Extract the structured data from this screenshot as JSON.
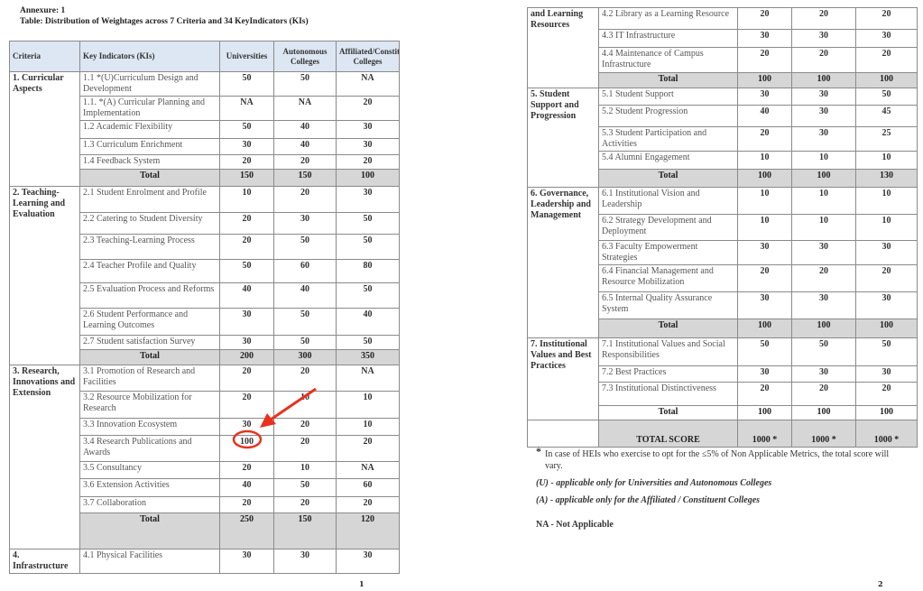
{
  "page1": {
    "annexure": "Annexure: 1",
    "title": "Table: Distribution of Weightages across 7 Criteria and 34 KeyIndicators (KIs)",
    "page_number": "1",
    "headers": [
      "Criteria",
      "Key Indicators (KIs)",
      "Universities",
      "Autonomous Colleges",
      "Affiliated/Constituent Colleges"
    ],
    "groups": [
      {
        "criteria": "1. Curricular Aspects",
        "rows": [
          {
            "ki": "1.1 *(U)Curriculum Design and Development",
            "u": "50",
            "a": "50",
            "c": "NA"
          },
          {
            "ki": "1.1. *(A) Curricular Planning and Implementation",
            "u": "NA",
            "a": "NA",
            "c": "20"
          },
          {
            "ki": "1.2 Academic Flexibility",
            "u": "50",
            "a": "40",
            "c": "30"
          },
          {
            "ki": "1.3 Curriculum Enrichment",
            "u": "30",
            "a": "40",
            "c": "30"
          },
          {
            "ki": "1.4 Feedback System",
            "u": "20",
            "a": "20",
            "c": "20"
          }
        ],
        "total": {
          "label": "Total",
          "u": "150",
          "a": "150",
          "c": "100"
        }
      },
      {
        "criteria": "2. Teaching-Learning and Evaluation",
        "rows": [
          {
            "ki": "2.1 Student Enrolment and Profile",
            "u": "10",
            "a": "20",
            "c": "30"
          },
          {
            "ki": "2.2 Catering to Student Diversity",
            "u": "20",
            "a": "30",
            "c": "50"
          },
          {
            "ki": "2.3 Teaching-Learning Process",
            "u": "20",
            "a": "50",
            "c": "50"
          },
          {
            "ki": "2.4 Teacher Profile and Quality",
            "u": "50",
            "a": "60",
            "c": "80"
          },
          {
            "ki": "2.5 Evaluation Process and Reforms",
            "u": "40",
            "a": "40",
            "c": "50"
          },
          {
            "ki": "2.6 Student Performance and Learning Outcomes",
            "u": "30",
            "a": "50",
            "c": "40"
          },
          {
            "ki": "2.7 Student satisfaction Survey",
            "u": "30",
            "a": "50",
            "c": "50"
          }
        ],
        "total": {
          "label": "Total",
          "u": "200",
          "a": "300",
          "c": "350"
        }
      },
      {
        "criteria": "3. Research, Innovations and Extension",
        "rows": [
          {
            "ki": "3.1 Promotion of Research and Facilities",
            "u": "20",
            "a": "20",
            "c": "NA"
          },
          {
            "ki": "3.2 Resource Mobilization for Research",
            "u": "20",
            "a": "10",
            "c": "10"
          },
          {
            "ki": "3.3 Innovation Ecosystem",
            "u": "30",
            "a": "20",
            "c": "10"
          },
          {
            "ki": "3.4 Research Publications and Awards",
            "u": "100",
            "a": "20",
            "c": "20"
          },
          {
            "ki": "3.5 Consultancy",
            "u": "20",
            "a": "10",
            "c": "NA"
          },
          {
            "ki": "3.6 Extension Activities",
            "u": "40",
            "a": "50",
            "c": "60"
          },
          {
            "ki": "3.7 Collaboration",
            "u": "20",
            "a": "20",
            "c": "20"
          }
        ],
        "total": {
          "label": "Total",
          "u": "250",
          "a": "150",
          "c": "120"
        }
      },
      {
        "criteria": "4. Infrastructure",
        "rows": [
          {
            "ki": "4.1 Physical Facilities",
            "u": "30",
            "a": "30",
            "c": "30"
          }
        ]
      }
    ]
  },
  "page2": {
    "page_number": "2",
    "groups": [
      {
        "criteria": "and Learning Resources",
        "rows": [
          {
            "ki": "4.2 Library as a Learning Resource",
            "u": "20",
            "a": "20",
            "c": "20"
          },
          {
            "ki": "4.3 IT Infrastructure",
            "u": "30",
            "a": "30",
            "c": "30"
          },
          {
            "ki": "4.4 Maintenance of Campus Infrastructure",
            "u": "20",
            "a": "20",
            "c": "20"
          }
        ],
        "total": {
          "label": "Total",
          "u": "100",
          "a": "100",
          "c": "100"
        }
      },
      {
        "criteria": "5. Student Support and Progression",
        "rows": [
          {
            "ki": "5.1 Student Support",
            "u": "30",
            "a": "30",
            "c": "50"
          },
          {
            "ki": "5.2 Student Progression",
            "u": "40",
            "a": "30",
            "c": "45"
          },
          {
            "ki": "5.3 Student Participation and Activities",
            "u": "20",
            "a": "30",
            "c": "25"
          },
          {
            "ki": "5.4 Alumni Engagement",
            "u": "10",
            "a": "10",
            "c": "10"
          }
        ],
        "total": {
          "label": "Total",
          "u": "100",
          "a": "100",
          "c": "130"
        }
      },
      {
        "criteria": "6. Governance, Leadership and Management",
        "rows": [
          {
            "ki": "6.1 Institutional Vision and Leadership",
            "u": "10",
            "a": "10",
            "c": "10"
          },
          {
            "ki": "6.2 Strategy Development and Deployment",
            "u": "10",
            "a": "10",
            "c": "10"
          },
          {
            "ki": "6.3 Faculty Empowerment Strategies",
            "u": "30",
            "a": "30",
            "c": "30"
          },
          {
            "ki": "6.4 Financial Management and Resource Mobilization",
            "u": "20",
            "a": "20",
            "c": "20"
          },
          {
            "ki": "6.5 Internal Quality Assurance System",
            "u": "30",
            "a": "30",
            "c": "30"
          }
        ],
        "total": {
          "label": "Total",
          "u": "100",
          "a": "100",
          "c": "100"
        }
      },
      {
        "criteria": "7. Institutional Values and Best Practices",
        "rows": [
          {
            "ki": "7.1 Institutional Values and Social Responsibilities",
            "u": "50",
            "a": "50",
            "c": "50"
          },
          {
            "ki": "7.2 Best Practices",
            "u": "30",
            "a": "30",
            "c": "30"
          },
          {
            "ki": "7.3 Institutional Distinctiveness",
            "u": "20",
            "a": "20",
            "c": "20"
          }
        ],
        "total": {
          "label": "Total",
          "u": "100",
          "a": "100",
          "c": "100"
        }
      }
    ],
    "total_score": {
      "label": "TOTAL SCORE",
      "u": "1000 *",
      "a": "1000 *",
      "c": "1000 *"
    },
    "notes": {
      "star": "*",
      "star_note": "In case of HEIs who exercise to opt for the ≤5% of Non Applicable Metrics, the total score will vary.",
      "u_note": "(U) - applicable only for Universities and Autonomous Colleges",
      "a_note": "(A) - applicable only for the Affiliated / Constituent Colleges",
      "na_note": "NA - Not Applicable"
    }
  },
  "annotation": {
    "color": "#e8321e",
    "highlighted_value": "100"
  }
}
